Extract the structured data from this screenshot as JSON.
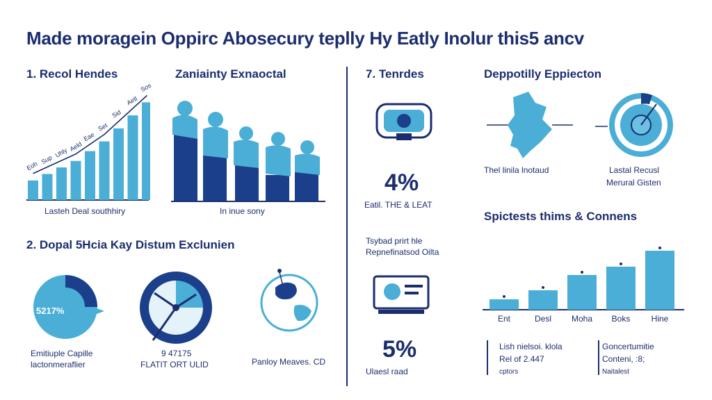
{
  "title": "Made moragein Oppirc Abosecury teplly Hy Eatly Inolur this5 ancv",
  "section1": {
    "heading": "1. Recol Hendes",
    "caption": "Lasteh Deal southhiry",
    "tick_labels": [
      "Eoh",
      "Sup",
      "Uhly",
      "Aeld",
      "Eae",
      "Set",
      "Sid",
      "Aetl",
      "Sos"
    ],
    "values": [
      3,
      4,
      5,
      6,
      7.5,
      9,
      11,
      13,
      15
    ]
  },
  "section_people": {
    "heading": "Zaniainty Exnaoctal",
    "caption": "In inue sony"
  },
  "section7": {
    "heading": "7. Tenrdes",
    "stat_value": "4%",
    "stat_label": "Eatil. THE & LEAT",
    "note_line1": "Tsybad prirt hle",
    "note_line2": "Repnefinatsod Oilta",
    "stat2_value": "5%",
    "stat2_label": "Ulaesl raad"
  },
  "section_map": {
    "heading": "Deppotilly Eppiecton",
    "map_caption": "Thel linila lnotaud",
    "target_line1": "Lastal Recusl",
    "target_line2": "Merural Gisten"
  },
  "section2": {
    "heading": "2. Dopal 5Hcia Kay Distum Exclunien",
    "gauge_value": "5217%",
    "gauge_line1": "Emitiuple Capille",
    "gauge_line2": "lactonmeraflier",
    "clock_line1": "9 47175",
    "clock_line2": "FLATIT ORT ULID",
    "globe_label": "Panloy Meaves. CD"
  },
  "section_right_chart": {
    "heading": "Spictests thims & Connens",
    "chart_data": {
      "type": "bar",
      "categories": [
        "Ent",
        "Desl",
        "Moha",
        "Boks",
        "Hine"
      ],
      "values": [
        15,
        28,
        50,
        62,
        85
      ],
      "ylim": [
        0,
        100
      ]
    }
  },
  "footer_notes": {
    "left_line1": "Lish nielsoi. klola",
    "left_line2": "Rel of 2.447",
    "left_line3": "cptors",
    "right_line1": "Goncertumitie",
    "right_line2": "Conteni, :8;",
    "right_line3": "Naitalest"
  },
  "colors": {
    "navy": "#1b2d6e",
    "blue": "#4aaed6",
    "dark_blue": "#1b3f8a",
    "light": "#e4f3fa"
  }
}
